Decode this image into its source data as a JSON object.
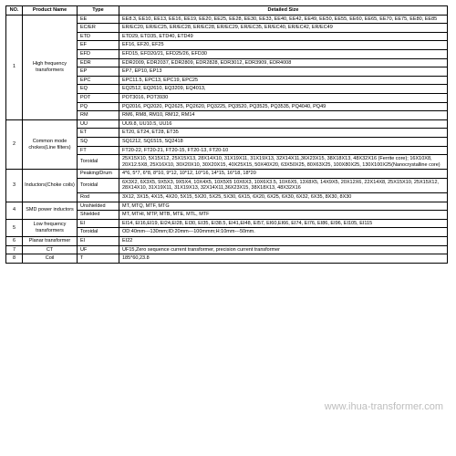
{
  "footer": "www.ihua-transformer.com",
  "headers": {
    "no": "NO.",
    "product": "Product Name",
    "type": "Type",
    "detail": "Detailed Size"
  },
  "groups": [
    {
      "no": "1",
      "product": "High frequency transformers",
      "rows": [
        {
          "type": "EE",
          "detail": "EE8.3, EE10, EE13, EE16, EE19, EE20, EE25, EE28, EE30, EE33, EE40, EE42, EE49, EE50, EE55, EE60, EE65, EE70, EE75, EE80, EE85"
        },
        {
          "type": "EC/ER",
          "detail": "ER/EC20, ER/EC25, ER/EC28, ER/EC28, ER/EC29, ER/EC35, ER/EC40, ER/EC42, ER/EC49"
        },
        {
          "type": "ETD",
          "detail": "ETD29, ETD35, ETD40, ETD49"
        },
        {
          "type": "EF",
          "detail": "EF16, EF20, EF25"
        },
        {
          "type": "EFD",
          "detail": "EFD15, EFD20/21, EFD25/26, EFD30"
        },
        {
          "type": "EDR",
          "detail": "EDR2009, EDR2037, EDR2809, EDR2828, EDR3012, EDR3909, EDR4008"
        },
        {
          "type": "EP",
          "detail": "EP7, EP10, EP13"
        },
        {
          "type": "EPC",
          "detail": "EPC11.5, EPC13, EPC19, EPC25"
        },
        {
          "type": "EQ",
          "detail": "EQ2512, EQ2610, EQ3209, EQ4013,"
        },
        {
          "type": "POT",
          "detail": "POT3016, POT3930"
        },
        {
          "type": "PQ",
          "detail": "PQ2016, PQ2020, PQ2625, PQ2620, PQ3225, PQ3520, PQ3525, PQ3535, PQ4040, PQ49"
        },
        {
          "type": "RM",
          "detail": "RM6, RM8, RM10, RM12, RM14"
        }
      ]
    },
    {
      "no": "2",
      "product": "Common mode chokes(Line filters)",
      "rows": [
        {
          "type": "UU",
          "detail": "UU9.8, UU10.5, UU16"
        },
        {
          "type": "ET",
          "detail": "ET20, ET24, ET28, ET35"
        },
        {
          "type": "SQ",
          "detail": "SQ1212, SQ1515, SQ2418"
        },
        {
          "type": "FT",
          "detail": "FT20-22, FT20-21, FT20-15, FT20-13, FT20-10"
        },
        {
          "type": "Toroidal",
          "detail": "25X15X10, 5X15X12, 25X15X13, 28X14X10, 31X19X11, 31X19X13, 32X14X11,36X23X15, 38X18X13, 48X32X16 (Ferrite core); 16X10X8, 20X12.5X8, 25X16X10, 30X20X10, 30X20X15, 40X25X15, 50X40X20, 63X50X25, 80X63X25, 100X80X25, 130X100X25(Nanocrystalline core)"
        }
      ]
    },
    {
      "no": "3",
      "product": "Inductors(Choke coils)",
      "rows": [
        {
          "type": "Peaking/Drum",
          "detail": "4*6, 5*7, 6*8, 8*10, 9*12, 10*12, 10*16, 14*15, 16*18, 18*20"
        },
        {
          "type": "Toroidal",
          "detail": "6X3X2, 6X3X5, 9X5X3, 9X5X4, 10X4X5, 10X5X5 10X6X3, 10X6X3.5, 10X6X5, 13X8X5, 14X9X5, 20X12X6, 22X14X8, 25X15X10, 25X15X12, 28X14X10, 31X19X11, 31X19X13, 32X14X11,36X23X15, 38X18X13, 48X32X16"
        },
        {
          "type": "Rod",
          "detail": "3X12, 3X15, 4X15, 4X20, 5X15, 5X20, 5X25, 5X30, 6X15, 6X20, 6X25, 6X30, 6X32, 6X35, 8X30, 8X30"
        }
      ]
    },
    {
      "no": "4",
      "product": "SMD power inductors",
      "rows": [
        {
          "type": "Unshielded",
          "detail": "MT, MTQ, MTF, MTG"
        },
        {
          "type": "Shielded",
          "detail": "MT, MTHI, MTP, MTB, MTE, MTL, MTF"
        }
      ]
    },
    {
      "no": "5",
      "product": "Low frequency transformers",
      "rows": [
        {
          "type": "EI",
          "detail": "EI14, EI16,EI19, EI24,EI28, EI30, EI35, EI38.5, EI41,EI48, EI57, EI60,EI66, EI74, EI76, EI86, EI96, EI105, EI115"
        },
        {
          "type": "Toroidal",
          "detail": "OD:40mm---130mm;ID:20mm---100mmm;H:10mm---50mm."
        }
      ]
    },
    {
      "no": "6",
      "product": "Planar transformer",
      "rows": [
        {
          "type": "EI",
          "detail": "EI22"
        }
      ]
    },
    {
      "no": "7",
      "product": "CT",
      "rows": [
        {
          "type": "UF",
          "detail": "UF15,Zero sequence current transformer, precision current transformer"
        }
      ]
    },
    {
      "no": "8",
      "product": "Coil",
      "rows": [
        {
          "type": "T",
          "detail": "185*60,23.8"
        }
      ]
    }
  ]
}
